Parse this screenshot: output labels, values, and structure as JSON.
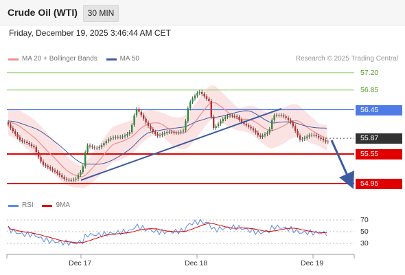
{
  "header": {
    "title": "Crude Oil (WTI)",
    "timeframe": "30 MIN"
  },
  "datetime": "Friday, December 19, 2025 3:46:44 AM CET",
  "legend": [
    {
      "label": "MA 20 + Bollinger Bands",
      "color": "#f28b8b"
    },
    {
      "label": "MA 50",
      "color": "#3a5ba0"
    }
  ],
  "credit": "Research © 2025 Trading Central",
  "price_levels": [
    {
      "label": "57.20",
      "value": 57.2,
      "style": "green"
    },
    {
      "label": "56.85",
      "value": 56.85,
      "style": "green"
    },
    {
      "label": "56.45",
      "value": 56.45,
      "style": "blue"
    },
    {
      "label": "55.87",
      "value": 55.87,
      "style": "current"
    },
    {
      "label": "55.55",
      "value": 55.55,
      "style": "red"
    },
    {
      "label": "54.95",
      "value": 54.95,
      "style": "red"
    }
  ],
  "colors": {
    "blue": "#4f7be6",
    "green": "#8fcf6a",
    "red": "#e00000",
    "current": "#333333",
    "up": "#2e8b3a",
    "down": "#c62828",
    "trend": "#3a5ba0"
  },
  "rsi_legend": [
    {
      "label": "RSI",
      "color": "#5b8be6"
    },
    {
      "label": "9MA",
      "color": "#e00000"
    }
  ],
  "rsi_levels": [
    "70",
    "50",
    "30"
  ],
  "x_labels": [
    "Dec 17",
    "Dec 18",
    "Dec 19"
  ]
}
